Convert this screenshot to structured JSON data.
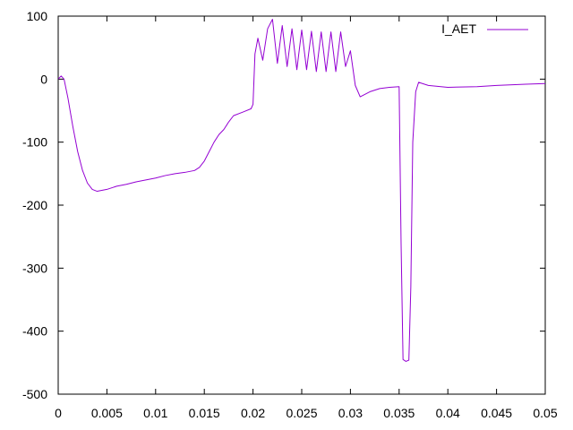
{
  "chart_data": {
    "type": "line",
    "title": "",
    "xlabel": "",
    "ylabel": "",
    "xlim": [
      0,
      0.05
    ],
    "ylim": [
      -500,
      100
    ],
    "x_ticks": [
      0,
      0.005,
      0.01,
      0.015,
      0.02,
      0.025,
      0.03,
      0.035,
      0.04,
      0.045,
      0.05
    ],
    "x_tick_labels": [
      "0",
      "0.005",
      "0.01",
      "0.015",
      "0.02",
      "0.025",
      "0.03",
      "0.035",
      "0.04",
      "0.045",
      "0.05"
    ],
    "y_ticks": [
      -500,
      -400,
      -300,
      -200,
      -100,
      0,
      100
    ],
    "y_tick_labels": [
      "-500",
      "-400",
      "-300",
      "-200",
      "-100",
      "0",
      "100"
    ],
    "grid": false,
    "legend_position": "top-right",
    "series": [
      {
        "name": "I_AET",
        "color": "#9400d3",
        "points": [
          [
            0,
            0
          ],
          [
            0.0003,
            5
          ],
          [
            0.0006,
            0
          ],
          [
            0.001,
            -30
          ],
          [
            0.0015,
            -75
          ],
          [
            0.002,
            -115
          ],
          [
            0.0025,
            -145
          ],
          [
            0.003,
            -165
          ],
          [
            0.0035,
            -175
          ],
          [
            0.004,
            -178
          ],
          [
            0.005,
            -175
          ],
          [
            0.006,
            -170
          ],
          [
            0.007,
            -167
          ],
          [
            0.008,
            -163
          ],
          [
            0.009,
            -160
          ],
          [
            0.01,
            -157
          ],
          [
            0.011,
            -153
          ],
          [
            0.012,
            -150
          ],
          [
            0.013,
            -148
          ],
          [
            0.014,
            -145
          ],
          [
            0.0145,
            -140
          ],
          [
            0.015,
            -130
          ],
          [
            0.0155,
            -115
          ],
          [
            0.016,
            -100
          ],
          [
            0.0165,
            -88
          ],
          [
            0.017,
            -80
          ],
          [
            0.0175,
            -68
          ],
          [
            0.018,
            -58
          ],
          [
            0.019,
            -52
          ],
          [
            0.0198,
            -47
          ],
          [
            0.02,
            -40
          ],
          [
            0.0202,
            40
          ],
          [
            0.0205,
            65
          ],
          [
            0.021,
            30
          ],
          [
            0.0215,
            80
          ],
          [
            0.022,
            95
          ],
          [
            0.0225,
            25
          ],
          [
            0.023,
            85
          ],
          [
            0.0235,
            20
          ],
          [
            0.024,
            80
          ],
          [
            0.0245,
            15
          ],
          [
            0.025,
            78
          ],
          [
            0.0255,
            15
          ],
          [
            0.026,
            76
          ],
          [
            0.0265,
            12
          ],
          [
            0.027,
            75
          ],
          [
            0.0275,
            12
          ],
          [
            0.028,
            75
          ],
          [
            0.0285,
            12
          ],
          [
            0.029,
            75
          ],
          [
            0.0295,
            20
          ],
          [
            0.03,
            45
          ],
          [
            0.0305,
            -10
          ],
          [
            0.031,
            -28
          ],
          [
            0.032,
            -20
          ],
          [
            0.033,
            -15
          ],
          [
            0.034,
            -13
          ],
          [
            0.035,
            -12
          ],
          [
            0.0352,
            -260
          ],
          [
            0.0354,
            -445
          ],
          [
            0.0357,
            -448
          ],
          [
            0.036,
            -446
          ],
          [
            0.0362,
            -330
          ],
          [
            0.0364,
            -100
          ],
          [
            0.0367,
            -20
          ],
          [
            0.037,
            -5
          ],
          [
            0.038,
            -10
          ],
          [
            0.04,
            -13
          ],
          [
            0.043,
            -12
          ],
          [
            0.045,
            -10
          ],
          [
            0.048,
            -8
          ],
          [
            0.05,
            -7
          ]
        ]
      }
    ]
  }
}
